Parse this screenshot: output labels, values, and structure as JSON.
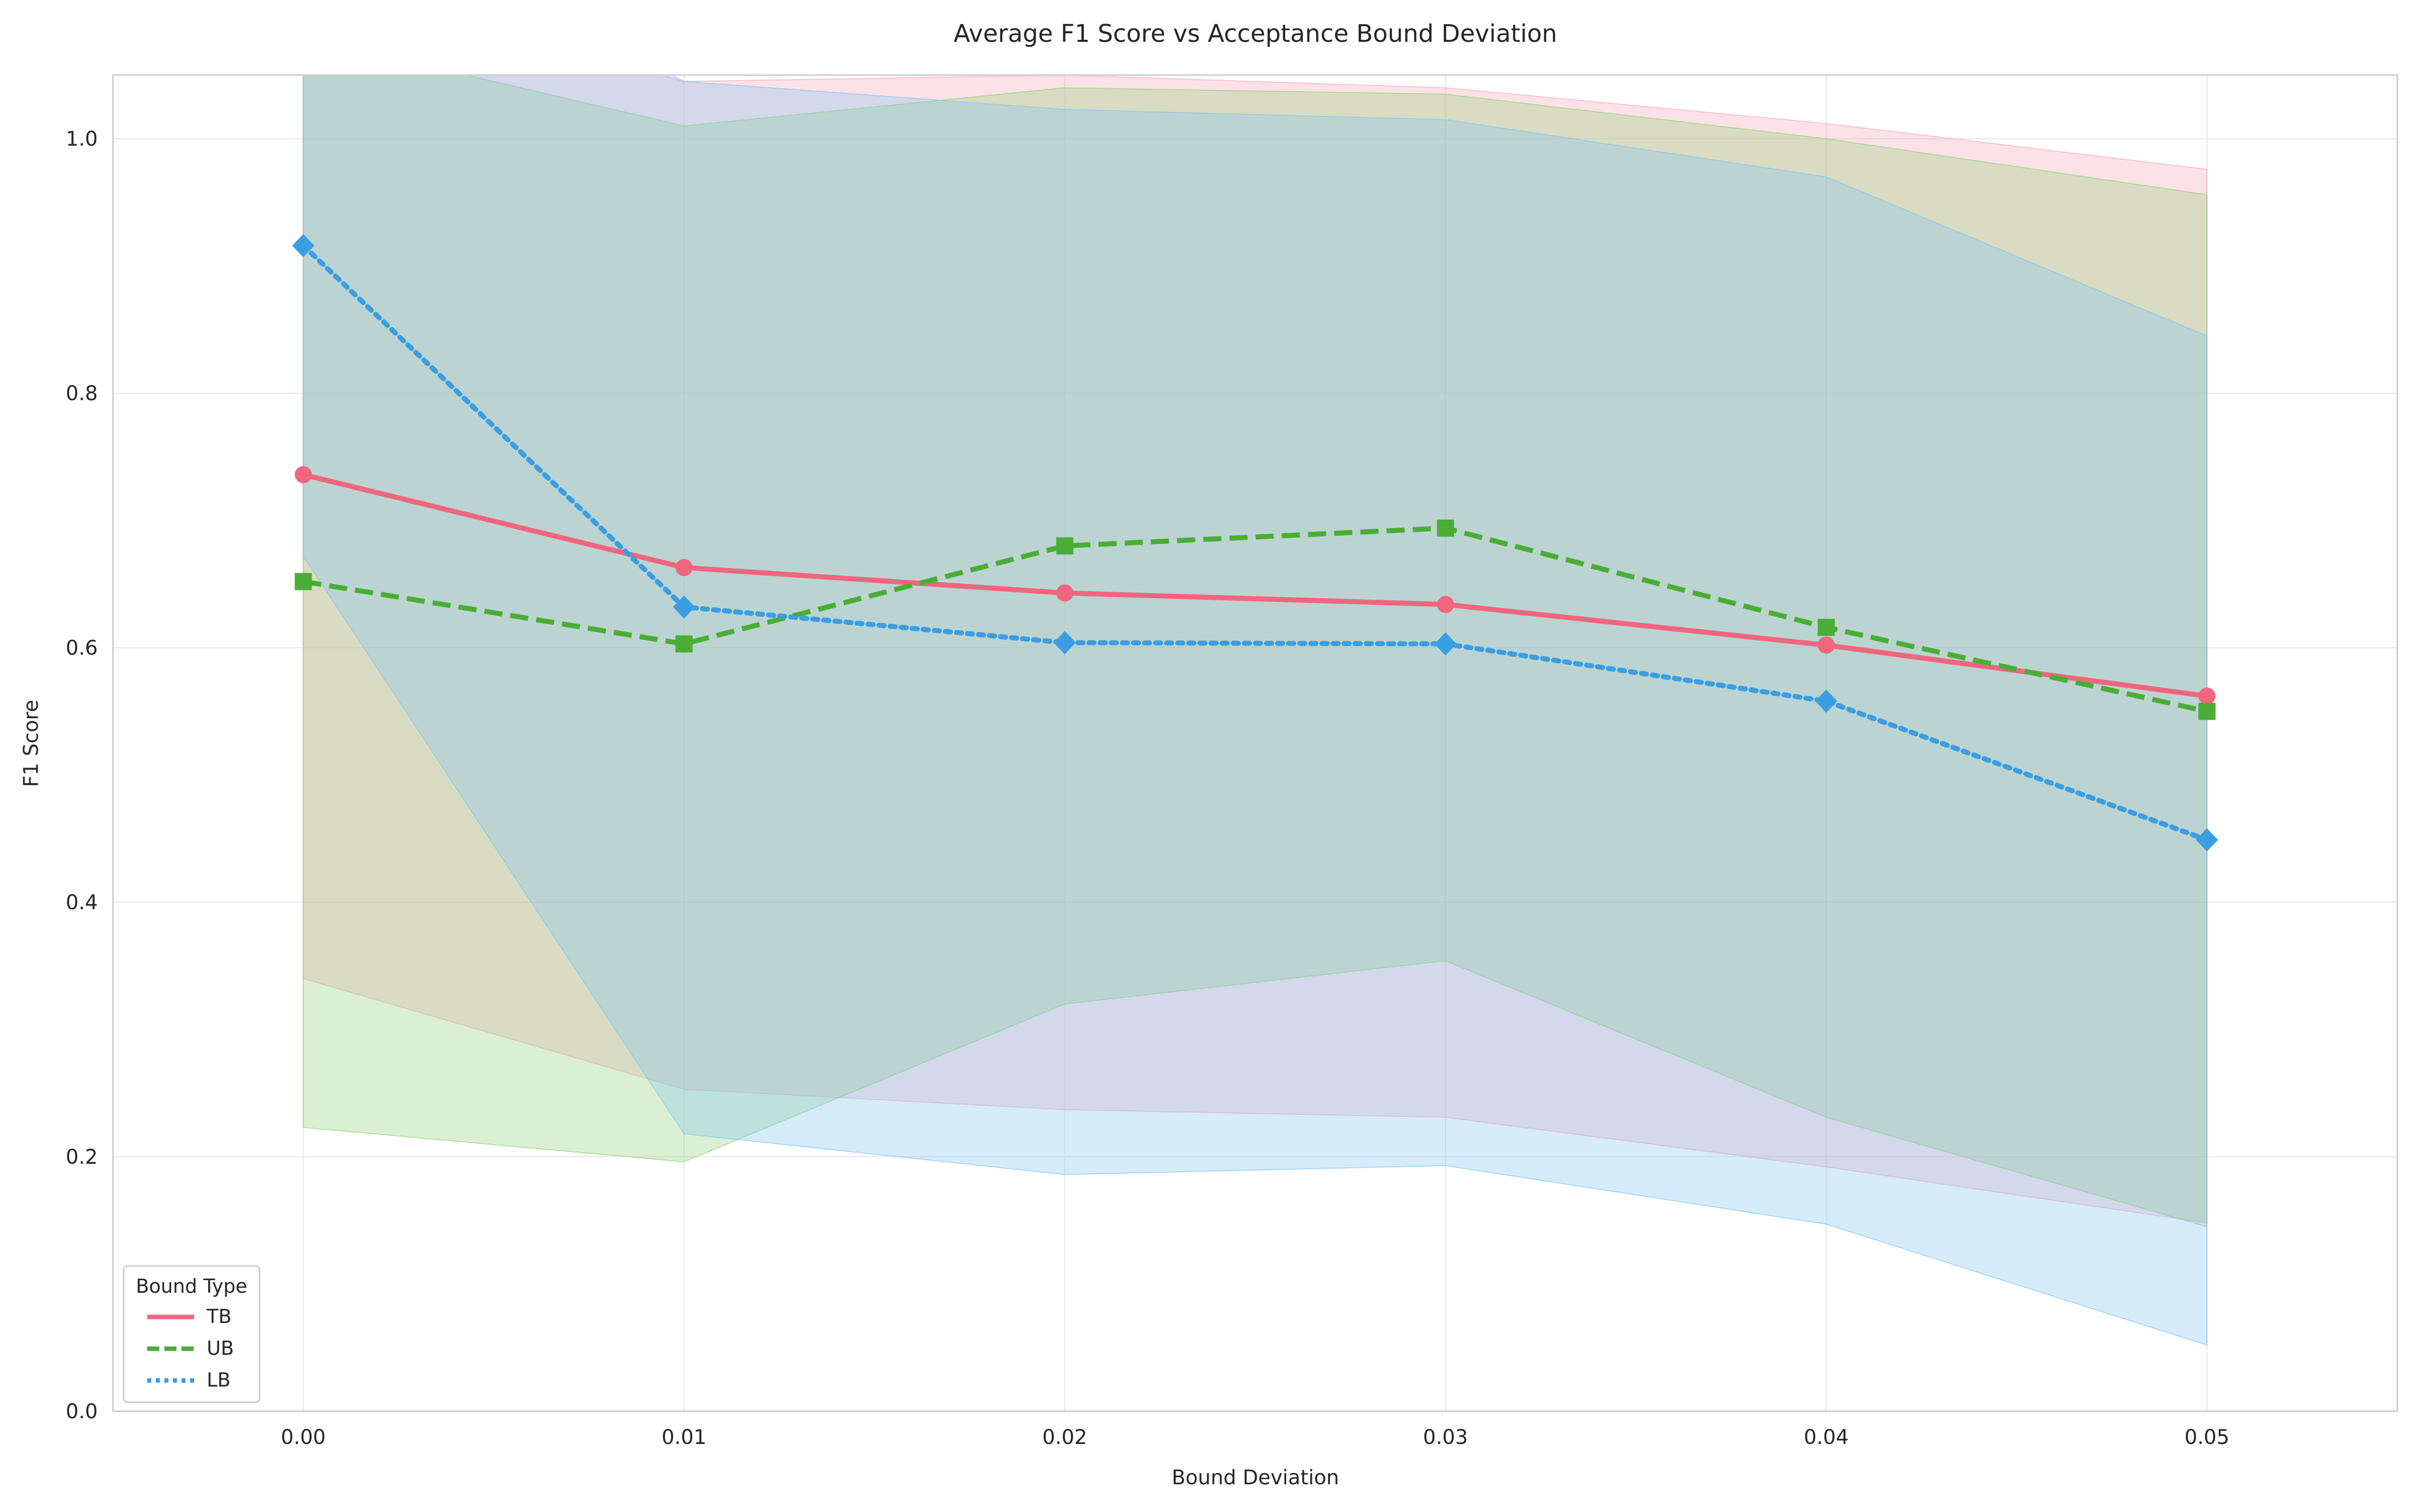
{
  "chart_data": {
    "type": "line",
    "title": "Average F1 Score vs Acceptance Bound Deviation",
    "xlabel": "Bound Deviation",
    "ylabel": "F1 Score",
    "x": [
      0.0,
      0.01,
      0.02,
      0.03,
      0.04,
      0.05
    ],
    "x_tick_labels": [
      "0.00",
      "0.01",
      "0.02",
      "0.03",
      "0.04",
      "0.05"
    ],
    "y_ticks": [
      0.0,
      0.2,
      0.4,
      0.6,
      0.8,
      1.0
    ],
    "y_tick_labels": [
      "0.0",
      "0.2",
      "0.4",
      "0.6",
      "0.8",
      "1.0"
    ],
    "xlim": [
      -0.005,
      0.055
    ],
    "ylim": [
      0.0,
      1.05
    ],
    "grid": true,
    "legend": {
      "title": "Bound Type",
      "position": "lower-left"
    },
    "series": [
      {
        "name": "TB",
        "color": "#f0667f",
        "line_style": "solid",
        "marker": "circle",
        "values": [
          0.736,
          0.663,
          0.643,
          0.634,
          0.602,
          0.562
        ],
        "band_upper": [
          1.13,
          1.045,
          1.05,
          1.04,
          1.012,
          0.976
        ],
        "band_lower": [
          0.34,
          0.253,
          0.237,
          0.231,
          0.192,
          0.148
        ]
      },
      {
        "name": "UB",
        "color": "#4aae36",
        "line_style": "dashed",
        "marker": "square",
        "values": [
          0.652,
          0.603,
          0.68,
          0.694,
          0.616,
          0.55
        ],
        "band_upper": [
          1.08,
          1.01,
          1.04,
          1.035,
          1.0,
          0.956
        ],
        "band_lower": [
          0.223,
          0.196,
          0.32,
          0.354,
          0.231,
          0.145
        ]
      },
      {
        "name": "LB",
        "color": "#3a9ee4",
        "line_style": "dotted",
        "marker": "diamond",
        "values": [
          0.916,
          0.632,
          0.604,
          0.603,
          0.558,
          0.449
        ],
        "band_upper": [
          1.2,
          1.045,
          1.023,
          1.015,
          0.97,
          0.845
        ],
        "band_lower": [
          0.672,
          0.218,
          0.186,
          0.193,
          0.147,
          0.052
        ]
      }
    ]
  }
}
